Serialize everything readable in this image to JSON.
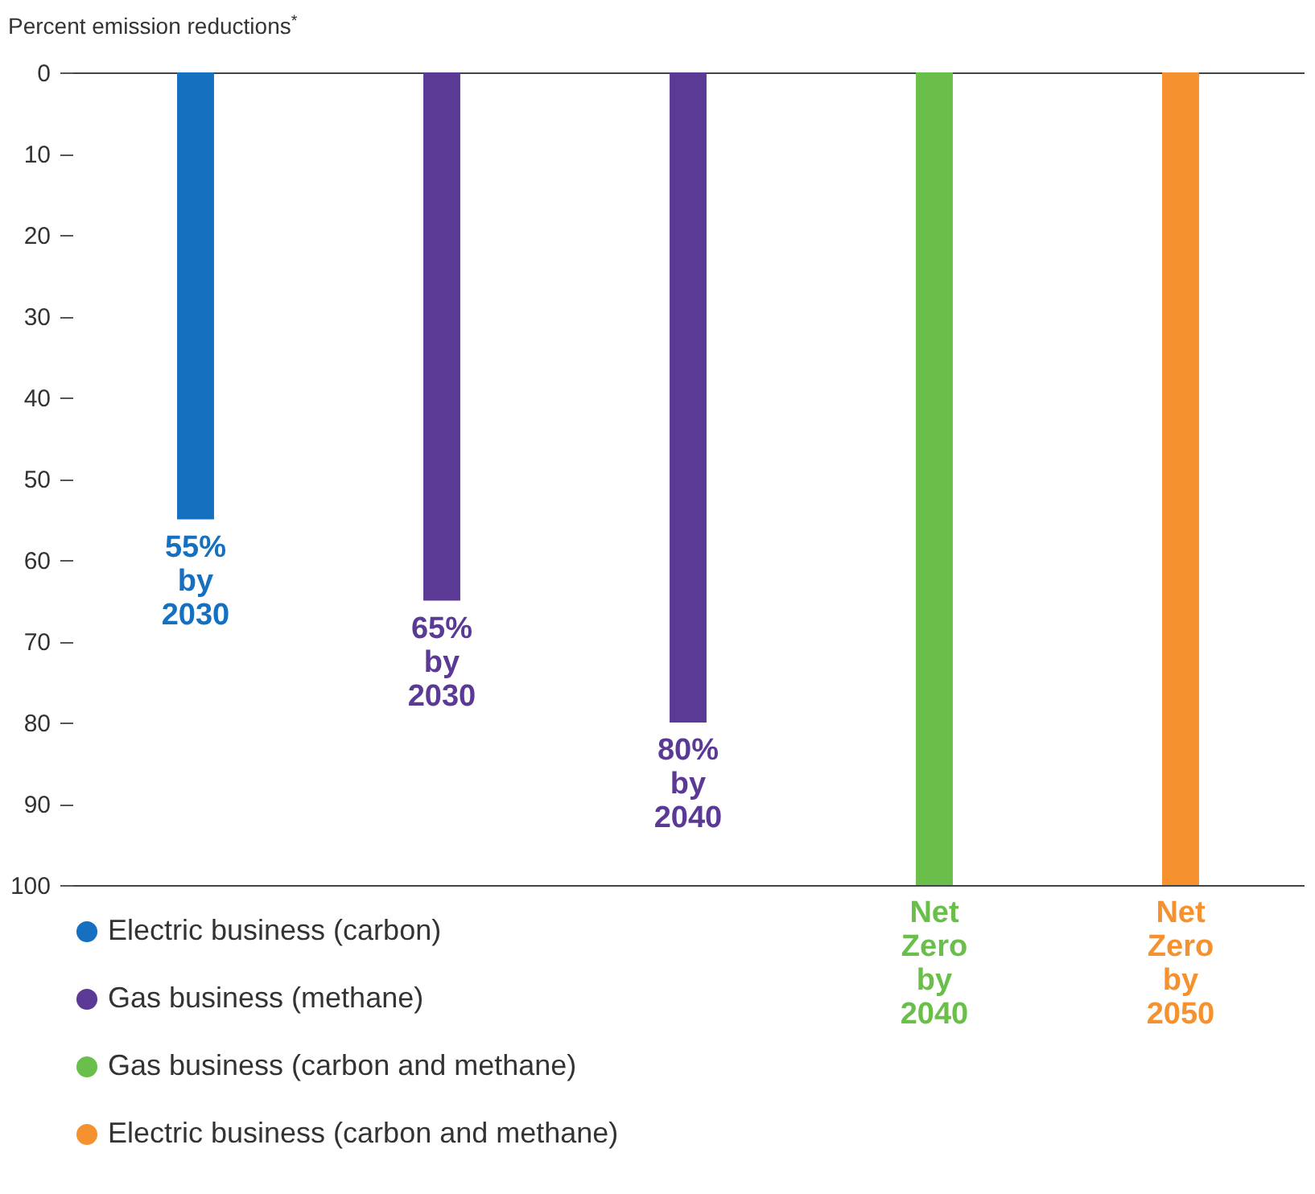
{
  "chart_data": {
    "type": "bar",
    "title": "Percent emission reductions$^{*}$",
    "categories": [
      null,
      null,
      null,
      null,
      null
    ],
    "series": [
      {
        "name": "Electric business (carbon)",
        "color": "#1570c0",
        "values": [
          55,
          null,
          null,
          null,
          null
        ],
        "value_labels": [
          "55% by 2030",
          null,
          null,
          null,
          null
        ]
      },
      {
        "name": "Gas business (methane)",
        "color": "#5b3a96",
        "values": [
          null,
          65,
          80,
          null,
          null
        ],
        "value_labels": [
          null,
          "65% by 2030",
          "80% by 2040",
          null,
          null
        ]
      },
      {
        "name": "Gas business (carbon and methane)",
        "color": "#6abf4b",
        "values": [
          null,
          null,
          null,
          100,
          null
        ],
        "value_labels": [
          null,
          null,
          null,
          "Net Zero by 2040",
          null
        ]
      },
      {
        "name": "Electric business (carbon and methane)",
        "color": "#f5922f",
        "values": [
          null,
          null,
          null,
          null,
          100
        ],
        "value_labels": [
          null,
          null,
          null,
          null,
          "Net Zero by 2050"
        ]
      }
    ],
    "ylim": [
      100,
      0
    ],
    "yticks": [
      0,
      10,
      20,
      30,
      40,
      50,
      60,
      70,
      80,
      90,
      100
    ],
    "grid": false,
    "legend": "bottom",
    "tick_labels": "y"
  }
}
